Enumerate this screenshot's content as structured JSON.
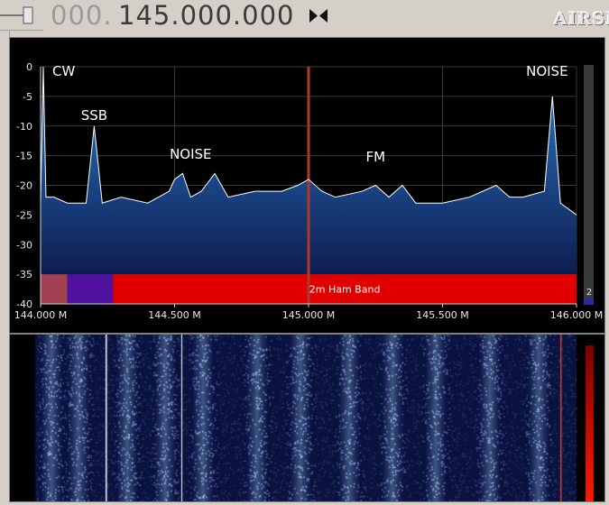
{
  "frequency": {
    "prefix_dim": "000.",
    "main": "145.000.000"
  },
  "logo": "AIRSPY",
  "spectrum": {
    "y_axis_labels": [
      "0",
      "-5",
      "-10",
      "-15",
      "-20",
      "-25",
      "-30",
      "-35",
      "-40"
    ],
    "x_axis_labels": [
      "144.000 M",
      "144.500 M",
      "145.000 M",
      "145.500 M",
      "146.000 M"
    ],
    "annotations": [
      "CW",
      "SSB",
      "NOISE",
      "FM",
      "NOISE"
    ],
    "band_label": "2m Ham Band",
    "scale_value": "2",
    "colors": {
      "fill_top": "#2a78c8",
      "fill_bottom": "#0a1040",
      "trace": "#ffffff",
      "center_marker": "#b03828",
      "band_bar": "#e00000",
      "grid": "#3a3a3a"
    }
  },
  "chart_data": {
    "type": "line",
    "xlabel": "",
    "ylabel": "",
    "xlim": [
      144.0,
      146.0
    ],
    "ylim": [
      -40,
      0
    ],
    "x_unit_ticks": [
      "144.000 M",
      "144.500 M",
      "145.000 M",
      "145.500 M",
      "146.000 M"
    ],
    "series": [
      {
        "values": [
          {
            "x": 144.0,
            "y": -23
          },
          {
            "x": 144.01,
            "y": 0
          },
          {
            "x": 144.02,
            "y": -22
          },
          {
            "x": 144.05,
            "y": -22
          },
          {
            "x": 144.1,
            "y": -23
          },
          {
            "x": 144.17,
            "y": -23
          },
          {
            "x": 144.2,
            "y": -10
          },
          {
            "x": 144.23,
            "y": -23
          },
          {
            "x": 144.3,
            "y": -22
          },
          {
            "x": 144.4,
            "y": -23
          },
          {
            "x": 144.48,
            "y": -21
          },
          {
            "x": 144.5,
            "y": -19
          },
          {
            "x": 144.53,
            "y": -18
          },
          {
            "x": 144.56,
            "y": -22
          },
          {
            "x": 144.6,
            "y": -21
          },
          {
            "x": 144.65,
            "y": -18
          },
          {
            "x": 144.7,
            "y": -22
          },
          {
            "x": 144.8,
            "y": -21
          },
          {
            "x": 144.9,
            "y": -21
          },
          {
            "x": 144.96,
            "y": -20
          },
          {
            "x": 145.0,
            "y": -19
          },
          {
            "x": 145.05,
            "y": -21
          },
          {
            "x": 145.1,
            "y": -22
          },
          {
            "x": 145.2,
            "y": -21
          },
          {
            "x": 145.25,
            "y": -20
          },
          {
            "x": 145.3,
            "y": -22
          },
          {
            "x": 145.35,
            "y": -20
          },
          {
            "x": 145.4,
            "y": -23
          },
          {
            "x": 145.5,
            "y": -23
          },
          {
            "x": 145.6,
            "y": -22
          },
          {
            "x": 145.7,
            "y": -20
          },
          {
            "x": 145.75,
            "y": -22
          },
          {
            "x": 145.8,
            "y": -22
          },
          {
            "x": 145.88,
            "y": -21
          },
          {
            "x": 145.91,
            "y": -5
          },
          {
            "x": 145.94,
            "y": -23
          },
          {
            "x": 146.0,
            "y": -25
          }
        ]
      }
    ],
    "band_segments": [
      {
        "from": 144.0,
        "to": 144.1,
        "color": "#a04050"
      },
      {
        "from": 144.1,
        "to": 144.27,
        "color": "#5010a0"
      },
      {
        "from": 144.27,
        "to": 146.0,
        "color": "#e00000",
        "label": "2m Ham Band"
      }
    ],
    "center_marker": 145.0,
    "grid": true,
    "legend": "none"
  },
  "waterfall": {
    "colors": {
      "background": "#0a1240",
      "signal": "#bfe0ff",
      "gradient_top": "#800000",
      "gradient_bottom": "#ff1a00"
    }
  }
}
